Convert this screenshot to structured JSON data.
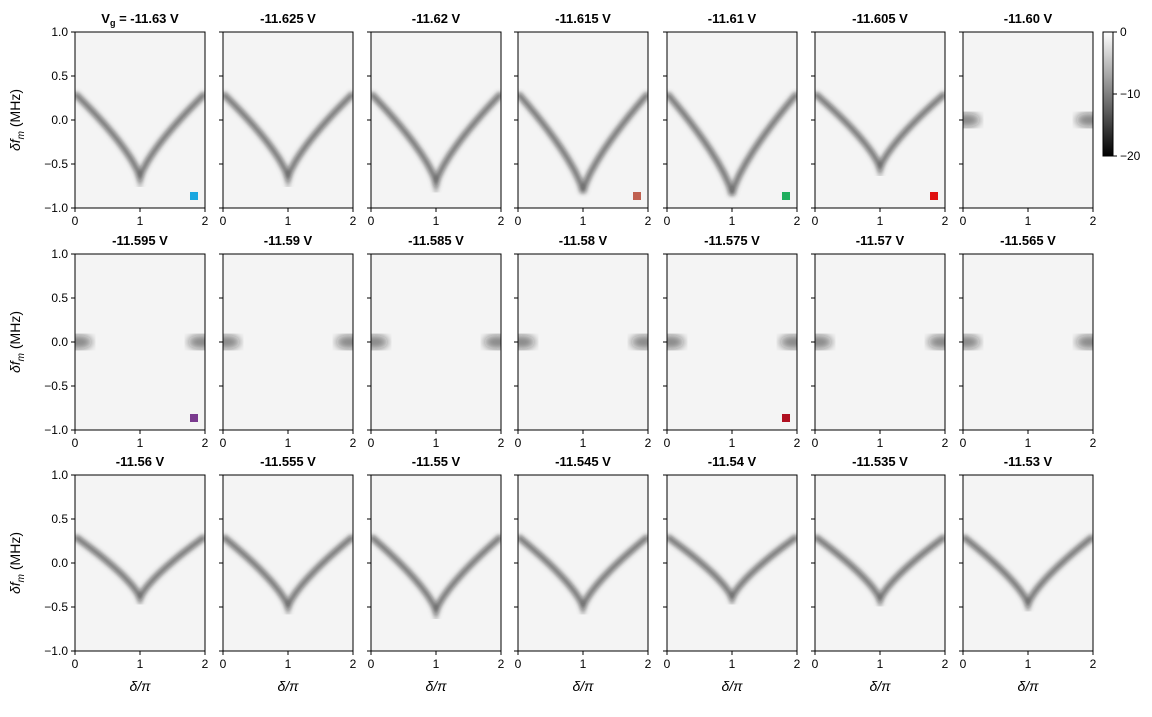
{
  "chart_data": {
    "type": "heatmap",
    "layout": {
      "rows": 3,
      "cols": 7
    },
    "xlabel": "δ/π",
    "ylabel": "δf_m (MHz)",
    "ylabel_main": "δf",
    "ylabel_sub": "m",
    "ylabel_unit": "(MHz)",
    "xlim": [
      0,
      2
    ],
    "ylim": [
      -1.0,
      1.0
    ],
    "xticks": [
      0,
      1,
      2
    ],
    "yticks": [
      -1.0,
      -0.5,
      0.0,
      0.5,
      1.0
    ],
    "ytick_labels": [
      "−1.0",
      "−0.5",
      "0.0",
      "0.5",
      "1.0"
    ],
    "colorbar": {
      "range": [
        -20,
        0
      ],
      "ticks": [
        0,
        -10,
        -20
      ],
      "tick_labels": [
        "0",
        "−10",
        "−20"
      ],
      "colormap": "gray"
    },
    "title_prefix_main": "V",
    "title_prefix_sub": "g",
    "title_prefix_rest": " = -11.63 V",
    "panels": [
      {
        "title": "-11.63 V",
        "vg": -11.63,
        "marker": "#1aa7e0",
        "min": -0.66,
        "band": 0.0
      },
      {
        "title": "-11.625 V",
        "vg": -11.625,
        "min": -0.66,
        "band": 0.0
      },
      {
        "title": "-11.62 V",
        "vg": -11.62,
        "min": -0.72,
        "band": 0.0
      },
      {
        "title": "-11.615 V",
        "vg": -11.615,
        "marker": "#c06050",
        "min": -0.82,
        "band": 0.0
      },
      {
        "title": "-11.61 V",
        "vg": -11.61,
        "marker": "#1fae5e",
        "min": -0.85,
        "band": 0.0
      },
      {
        "title": "-11.605 V",
        "vg": -11.605,
        "marker": "#e01010",
        "min": -0.55,
        "band": 0.0
      },
      {
        "title": "-11.60 V",
        "vg": -11.6,
        "min": 0.0,
        "band": 0.0
      },
      {
        "title": "-11.595 V",
        "vg": -11.595,
        "marker": "#7a3a8e",
        "min": 0.0,
        "band": 0.0
      },
      {
        "title": "-11.59 V",
        "vg": -11.59,
        "min": 0.0,
        "band": 0.0
      },
      {
        "title": "-11.585 V",
        "vg": -11.585,
        "min": 0.0,
        "band": 0.0
      },
      {
        "title": "-11.58 V",
        "vg": -11.58,
        "min": 0.0,
        "band": 0.0
      },
      {
        "title": "-11.575 V",
        "vg": -11.575,
        "marker": "#b01020",
        "min": 0.0,
        "band": 0.0
      },
      {
        "title": "-11.57 V",
        "vg": -11.57,
        "min": 0.0,
        "band": 0.0
      },
      {
        "title": "-11.565 V",
        "vg": -11.565,
        "min": 0.0,
        "band": 0.0
      },
      {
        "title": "-11.56 V",
        "vg": -11.56,
        "min": -0.4,
        "band": 0.0
      },
      {
        "title": "-11.555 V",
        "vg": -11.555,
        "min": -0.5,
        "band": 0.0
      },
      {
        "title": "-11.55 V",
        "vg": -11.55,
        "min": -0.55,
        "band": -0.05
      },
      {
        "title": "-11.545 V",
        "vg": -11.545,
        "min": -0.5,
        "band": -0.08
      },
      {
        "title": "-11.54 V",
        "vg": -11.54,
        "min": -0.4,
        "band": 0.0
      },
      {
        "title": "-11.535 V",
        "vg": -11.535,
        "min": -0.42,
        "band": 0.0
      },
      {
        "title": "-11.53 V",
        "vg": -11.53,
        "min": -0.47,
        "band": 0.0
      }
    ]
  }
}
